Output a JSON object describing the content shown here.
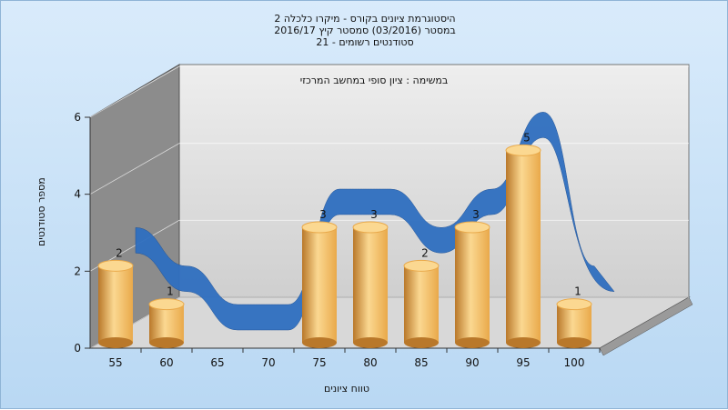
{
  "title": {
    "line1": "היסטוגרמת ציונים בקורס - מיקרו כלכלה 2",
    "line2": "במסטר  (03/2016)  סמסטר קיץ 2016/17",
    "line3": "סטודנטים רשומים - 21"
  },
  "note": "במשימה : ציון סופי במחשב המרכזי",
  "colors": {
    "bar": "#e9a94a",
    "bar_light": "#fbd891",
    "bar_dark": "#b9782a",
    "line_front": "#2f6fc0",
    "line_back": "#6a6a6a",
    "wall_left": "#8c8c8c",
    "wall_back": "#cfcfcf",
    "floor": "#d8d8d8"
  },
  "chart_data": {
    "type": "bar",
    "title": "היסטוגרמת ציונים בקורס - מיקרו כלכלה 2",
    "xlabel": "טווח ציונים",
    "ylabel": "מספר סטודנטים",
    "categories": [
      "55",
      "60",
      "65",
      "70",
      "75",
      "80",
      "85",
      "90",
      "95",
      "100"
    ],
    "values": [
      2,
      1,
      0,
      0,
      3,
      3,
      2,
      3,
      5,
      1
    ],
    "yticks": [
      "0",
      "2",
      "4",
      "6"
    ],
    "ylim": [
      0,
      6
    ],
    "bar_labels": [
      "2",
      "1",
      "",
      "",
      "3",
      "3",
      "2",
      "3",
      "5",
      "1"
    ],
    "overlay": "smooth-ribbon",
    "grid": true
  }
}
